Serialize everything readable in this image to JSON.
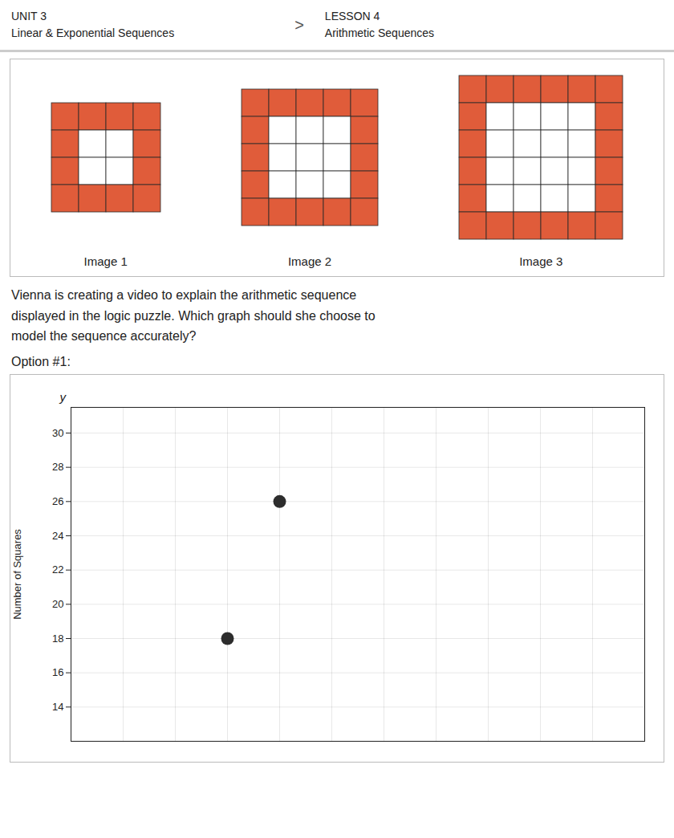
{
  "chart_data": {
    "type": "scatter",
    "title": "Option #1:",
    "annotations": [
      "UNIT 3",
      "Linear & Exponential Sequences",
      ">",
      "LESSON 4",
      "Arithmetic Sequences",
      "Vienna is creating a video to explain the arithmetic sequence\ndisplayed in the logic puzzle. Which graph should she choose to\nmodel the sequence accurately?",
      "y"
    ],
    "images": [
      {
        "label": "Image 1",
        "grid": 4,
        "color": "#e05c3a"
      },
      {
        "label": "Image 2",
        "grid": 5,
        "color": "#e05c3a"
      },
      {
        "label": "Image 3",
        "grid": 6,
        "color": "#e05c3a"
      }
    ],
    "x": [
      3,
      4
    ],
    "values": [
      18,
      26
    ],
    "color": "#2d2d2d",
    "ylabel": "Number of Squares",
    "xlim": [
      0,
      11
    ],
    "xticks": [
      1,
      2,
      3,
      4,
      5,
      6,
      7,
      8,
      9,
      10,
      11
    ],
    "ylim": [
      12,
      31.5
    ],
    "yticks": [
      14,
      16,
      18,
      20,
      22,
      24,
      26,
      28,
      30
    ],
    "grid": true,
    "tick_labels": "y"
  }
}
